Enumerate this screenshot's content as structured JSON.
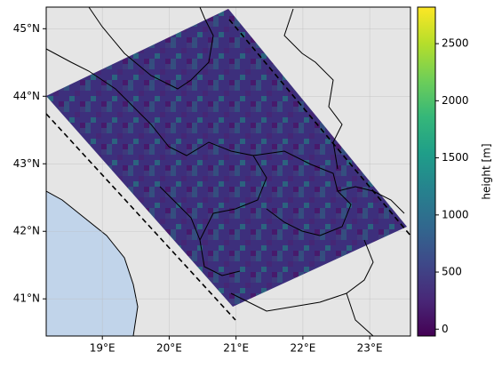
{
  "map": {
    "xlim": [
      18.16,
      23.61
    ],
    "ylim": [
      40.45,
      45.32
    ],
    "xticks": [
      {
        "value": 19,
        "label": "19°E"
      },
      {
        "value": 20,
        "label": "20°E"
      },
      {
        "value": 21,
        "label": "21°E"
      },
      {
        "value": 22,
        "label": "22°E"
      },
      {
        "value": 23,
        "label": "23°E"
      }
    ],
    "yticks": [
      {
        "value": 41,
        "label": "41°N"
      },
      {
        "value": 42,
        "label": "42°N"
      },
      {
        "value": 43,
        "label": "43°N"
      },
      {
        "value": 44,
        "label": "44°N"
      },
      {
        "value": 45,
        "label": "45°N"
      }
    ],
    "grid": true,
    "colorbar": {
      "label": "height [m]",
      "lim": [
        -60,
        2820
      ],
      "ticks": [
        0,
        500,
        1000,
        1500,
        2000,
        2500
      ],
      "colormap": [
        "#440154",
        "#482878",
        "#3e4989",
        "#31688e",
        "#26828e",
        "#1f9e89",
        "#35b779",
        "#6ece58",
        "#b5de2b",
        "#fde725"
      ]
    }
  }
}
